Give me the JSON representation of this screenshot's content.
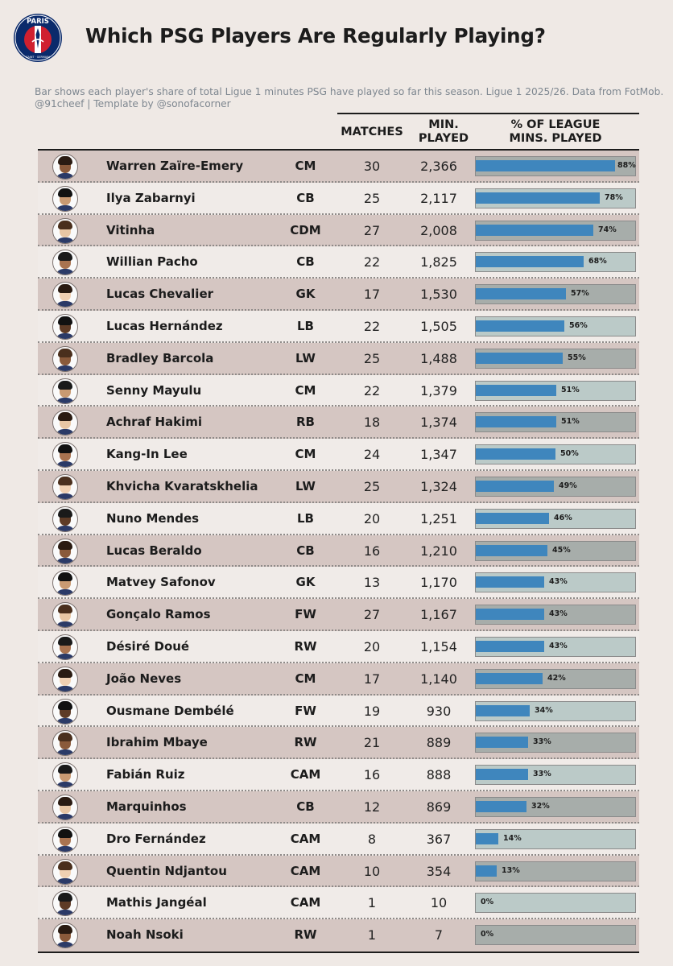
{
  "header": {
    "title": "Which PSG Players Are Regularly Playing?",
    "subtitle_line1": "Bar shows each player's share of total Ligue 1 minutes PSG have played so far this season. Ligue 1 2025/26. Data from FotMob.",
    "subtitle_line2": "@91cheef | Template by @sonofacorner",
    "logo_text_top": "PARIS",
    "logo_text_bottom": "SAINT · GERMAIN",
    "logo_colors": {
      "navy": "#0a2a6b",
      "red": "#d0202f",
      "white": "#ffffff"
    }
  },
  "columns": {
    "matches": "MATCHES",
    "min_line1": "MIN.",
    "min_line2": "PLAYED",
    "pct_line1": "% OF LEAGUE",
    "pct_line2": "MINS. PLAYED"
  },
  "colors": {
    "bar_fill": "#3f86bd",
    "row_odd": "#d5c6c2",
    "row_even": "#f0ebe8",
    "bar_bg_odd": "#a7adaa",
    "bar_bg_even": "#bbcac8"
  },
  "chart_data": {
    "type": "bar",
    "title": "Which PSG Players Are Regularly Playing?",
    "xlim": [
      0,
      100
    ],
    "players": [
      {
        "name": "Warren Zaïre-Emery",
        "position": "CM",
        "matches": "30",
        "minutes": "2,366",
        "pct": 88,
        "pct_label": "88%"
      },
      {
        "name": "Ilya Zabarnyi",
        "position": "CB",
        "matches": "25",
        "minutes": "2,117",
        "pct": 78,
        "pct_label": "78%"
      },
      {
        "name": "Vitinha",
        "position": "CDM",
        "matches": "27",
        "minutes": "2,008",
        "pct": 74,
        "pct_label": "74%"
      },
      {
        "name": "Willian Pacho",
        "position": "CB",
        "matches": "22",
        "minutes": "1,825",
        "pct": 68,
        "pct_label": "68%"
      },
      {
        "name": "Lucas Chevalier",
        "position": "GK",
        "matches": "17",
        "minutes": "1,530",
        "pct": 57,
        "pct_label": "57%"
      },
      {
        "name": "Lucas Hernández",
        "position": "LB",
        "matches": "22",
        "minutes": "1,505",
        "pct": 56,
        "pct_label": "56%"
      },
      {
        "name": "Bradley Barcola",
        "position": "LW",
        "matches": "25",
        "minutes": "1,488",
        "pct": 55,
        "pct_label": "55%"
      },
      {
        "name": "Senny Mayulu",
        "position": "CM",
        "matches": "22",
        "minutes": "1,379",
        "pct": 51,
        "pct_label": "51%"
      },
      {
        "name": "Achraf Hakimi",
        "position": "RB",
        "matches": "18",
        "minutes": "1,374",
        "pct": 51,
        "pct_label": "51%"
      },
      {
        "name": "Kang-In Lee",
        "position": "CM",
        "matches": "24",
        "minutes": "1,347",
        "pct": 50,
        "pct_label": "50%"
      },
      {
        "name": "Khvicha Kvaratskhelia",
        "position": "LW",
        "matches": "25",
        "minutes": "1,324",
        "pct": 49,
        "pct_label": "49%"
      },
      {
        "name": "Nuno Mendes",
        "position": "LB",
        "matches": "20",
        "minutes": "1,251",
        "pct": 46,
        "pct_label": "46%"
      },
      {
        "name": "Lucas Beraldo",
        "position": "CB",
        "matches": "16",
        "minutes": "1,210",
        "pct": 45,
        "pct_label": "45%"
      },
      {
        "name": "Matvey Safonov",
        "position": "GK",
        "matches": "13",
        "minutes": "1,170",
        "pct": 43,
        "pct_label": "43%"
      },
      {
        "name": "Gonçalo Ramos",
        "position": "FW",
        "matches": "27",
        "minutes": "1,167",
        "pct": 43,
        "pct_label": "43%"
      },
      {
        "name": "Désiré Doué",
        "position": "RW",
        "matches": "20",
        "minutes": "1,154",
        "pct": 43,
        "pct_label": "43%"
      },
      {
        "name": "João Neves",
        "position": "CM",
        "matches": "17",
        "minutes": "1,140",
        "pct": 42,
        "pct_label": "42%"
      },
      {
        "name": "Ousmane Dembélé",
        "position": "FW",
        "matches": "19",
        "minutes": "930",
        "pct": 34,
        "pct_label": "34%"
      },
      {
        "name": "Ibrahim Mbaye",
        "position": "RW",
        "matches": "21",
        "minutes": "889",
        "pct": 33,
        "pct_label": "33%"
      },
      {
        "name": "Fabián Ruiz",
        "position": "CAM",
        "matches": "16",
        "minutes": "888",
        "pct": 33,
        "pct_label": "33%"
      },
      {
        "name": "Marquinhos",
        "position": "CB",
        "matches": "12",
        "minutes": "869",
        "pct": 32,
        "pct_label": "32%"
      },
      {
        "name": "Dro Fernández",
        "position": "CAM",
        "matches": "8",
        "minutes": "367",
        "pct": 14,
        "pct_label": "14%"
      },
      {
        "name": "Quentin Ndjantou",
        "position": "CAM",
        "matches": "10",
        "minutes": "354",
        "pct": 13,
        "pct_label": "13%"
      },
      {
        "name": "Mathis Jangéal",
        "position": "CAM",
        "matches": "1",
        "minutes": "10",
        "pct": 0,
        "pct_label": "0%"
      },
      {
        "name": "Noah Nsoki",
        "position": "RW",
        "matches": "1",
        "minutes": "7",
        "pct": 0,
        "pct_label": "0%"
      }
    ]
  }
}
